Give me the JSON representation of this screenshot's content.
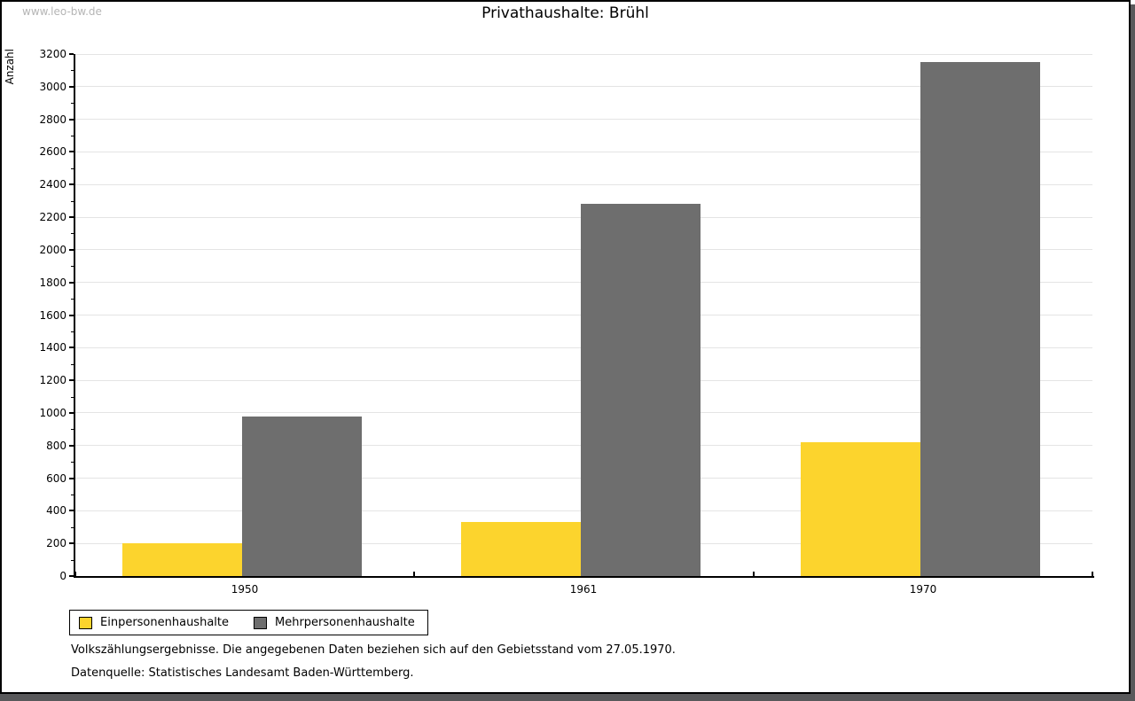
{
  "watermark": "www.leo-bw.de",
  "chart_data": {
    "type": "bar",
    "title": "Privathaushalte: Brühl",
    "ylabel": "Anzahl",
    "xlabel": "",
    "categories": [
      "1950",
      "1961",
      "1970"
    ],
    "series": [
      {
        "name": "Einpersonenhaushalte",
        "color": "#FCD42D",
        "values": [
          200,
          330,
          820
        ]
      },
      {
        "name": "Mehrpersonenhaushalte",
        "color": "#6E6E6E",
        "values": [
          980,
          2280,
          3150
        ]
      }
    ],
    "ylim": [
      0,
      3200
    ],
    "ytick_step": 200,
    "ytick_minor_step": 100,
    "grid": true,
    "gridline_color": "#E4E4E4",
    "legend_position": "bottom-left"
  },
  "footer": {
    "line1": "Volkszählungsergebnisse. Die angegebenen Daten beziehen sich auf den Gebietsstand vom 27.05.1970.",
    "line2": "Datenquelle: Statistisches Landesamt Baden-Württemberg."
  },
  "frame": {
    "border_color": "#000000",
    "shadow_color": "#59595B"
  }
}
